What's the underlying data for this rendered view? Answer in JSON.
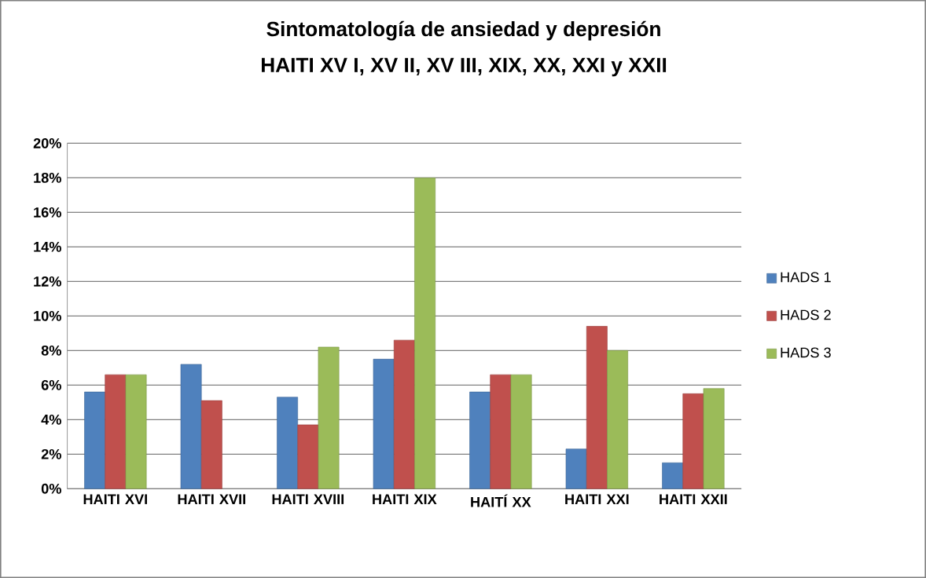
{
  "chart_data": {
    "type": "bar",
    "title": "Sintomatología de ansiedad y depresión",
    "subtitle": "HAITI XV I, XV II, XV III, XIX, XX, XXI y XXII",
    "categories": [
      "HAITI XVI",
      "HAITI XVII",
      "HAITI XVIII",
      "HAITI XIX",
      "HAITÍ XX",
      "HAITI XXI",
      "HAITI XXII"
    ],
    "series": [
      {
        "name": "HADS 1",
        "color": "#4f81bd",
        "values": [
          5.6,
          7.2,
          5.3,
          7.5,
          5.6,
          2.3,
          1.5
        ]
      },
      {
        "name": "HADS 2",
        "color": "#c0504d",
        "values": [
          6.6,
          5.1,
          3.7,
          8.6,
          6.6,
          9.4,
          5.5
        ]
      },
      {
        "name": "HADS 3",
        "color": "#9bbb59",
        "values": [
          6.6,
          null,
          8.2,
          18.0,
          6.6,
          8.0,
          5.8
        ]
      }
    ],
    "ylim": [
      0,
      20
    ],
    "yticks": [
      {
        "value": 0,
        "label": "0%"
      },
      {
        "value": 2,
        "label": "2%"
      },
      {
        "value": 4,
        "label": "4%"
      },
      {
        "value": 6,
        "label": "6%"
      },
      {
        "value": 8,
        "label": "8%"
      },
      {
        "value": 10,
        "label": "10%"
      },
      {
        "value": 12,
        "label": "12%"
      },
      {
        "value": 14,
        "label": "14%"
      },
      {
        "value": 16,
        "label": "16%"
      },
      {
        "value": 18,
        "label": "18%"
      },
      {
        "value": 20,
        "label": "20%"
      }
    ],
    "grid": "y",
    "legend": "right"
  }
}
